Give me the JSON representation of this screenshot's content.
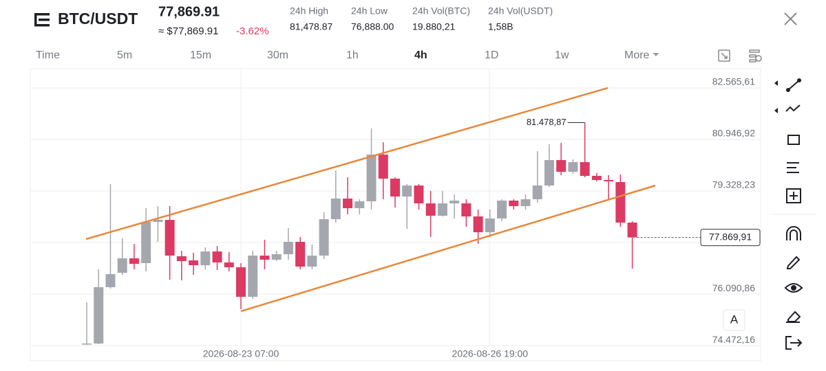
{
  "header": {
    "symbol": "BTC/USDT",
    "price": "77,869.91",
    "approx_price": "≈ $77,869.91",
    "change": "-3.62%",
    "stats": [
      {
        "label": "24h High",
        "value": "81,478.87"
      },
      {
        "label": "24h Low",
        "value": "76,888.00"
      },
      {
        "label": "24h Vol(BTC)",
        "value": "19.880,21"
      },
      {
        "label": "24h Vol(USDT)",
        "value": "1,58B"
      }
    ]
  },
  "timeframes": {
    "items": [
      "Time",
      "5m",
      "15m",
      "30m",
      "1h",
      "4h",
      "1D",
      "1w",
      "More"
    ],
    "active": "4h"
  },
  "chart_data": {
    "type": "candlestick",
    "categories": [
      null,
      null,
      null,
      null,
      null,
      null,
      null,
      null,
      null,
      null,
      null,
      null,
      null,
      "2026-08-23 07:00",
      null,
      null,
      null,
      null,
      null,
      null,
      null,
      null,
      null,
      null,
      null,
      null,
      null,
      null,
      null,
      null,
      null,
      null,
      null,
      null,
      "2026-08-26 19:00",
      null,
      null,
      null,
      null,
      null,
      null,
      null,
      null,
      null,
      null,
      null,
      null
    ],
    "open": [
      74516,
      74538,
      76308,
      76761,
      77214,
      77063,
      78358,
      78422,
      77279,
      77149,
      76998,
      77430,
      77084,
      76933,
      76005,
      77300,
      77171,
      77343,
      77732,
      76955,
      77300,
      78444,
      79091,
      78789,
      79005,
      80472,
      79717,
      79156,
      79501,
      78940,
      78552,
      78940,
      78940,
      78530,
      78034,
      78466,
      79027,
      78854,
      79070,
      79501,
      80300,
      79933,
      80235,
      79804,
      79674,
      79609,
      78336
    ],
    "high": [
      75833,
      76869,
      79545,
      77840,
      77667,
      78789,
      78854,
      78854,
      77451,
      77387,
      77559,
      77602,
      77408,
      77063,
      77451,
      77797,
      77451,
      78163,
      77883,
      77646,
      78660,
      79976,
      79760,
      79070,
      81292,
      80861,
      79760,
      79545,
      79545,
      79329,
      79329,
      79221,
      79070,
      78746,
      78746,
      79070,
      79070,
      79221,
      80580,
      80796,
      80839,
      80321,
      81478.87,
      79890,
      79825,
      79847,
      78379
    ],
    "low": [
      74495,
      74516,
      76264,
      76696,
      76869,
      76804,
      77732,
      76545,
      76523,
      76696,
      76869,
      76847,
      76804,
      75617,
      75941,
      76869,
      77128,
      77171,
      76869,
      76869,
      77192,
      78336,
      78595,
      78595,
      78746,
      79070,
      78811,
      78142,
      78746,
      77883,
      78530,
      78466,
      78207,
      77667,
      77883,
      78379,
      78746,
      78746,
      78962,
      79458,
      79825,
      79868,
      79760,
      79631,
      79070,
      78207,
      76888
    ],
    "close": [
      74538,
      76308,
      76718,
      77214,
      77041,
      78358,
      78422,
      77300,
      77128,
      76998,
      77430,
      77084,
      76933,
      76005,
      77300,
      77171,
      77343,
      77732,
      76955,
      77300,
      78444,
      79091,
      78789,
      79005,
      80472,
      79717,
      79156,
      79501,
      78940,
      78552,
      78940,
      79027,
      78530,
      78034,
      78466,
      79027,
      78854,
      79070,
      79501,
      80300,
      79933,
      80235,
      79804,
      79674,
      79631,
      78336,
      77869.91
    ],
    "up_color": "#a4a7ae",
    "down_color": "#dc3a63",
    "ylim": [
      73999,
      83170
    ],
    "yticks": [
      {
        "value": 82565.61,
        "label": "82.565,61"
      },
      {
        "value": 80946.92,
        "label": "80.946,92"
      },
      {
        "value": 79328.23,
        "label": "79.328,23"
      },
      {
        "value": 77709.55,
        "label": null
      },
      {
        "value": 76090.86,
        "label": "76.090,86"
      },
      {
        "value": 74472.16,
        "label": "74.472,16"
      }
    ],
    "grid": true,
    "high_annotation": {
      "text": "81.478,87",
      "index": 42
    },
    "last_price_label": "77.869,91",
    "auto_button": "A"
  }
}
